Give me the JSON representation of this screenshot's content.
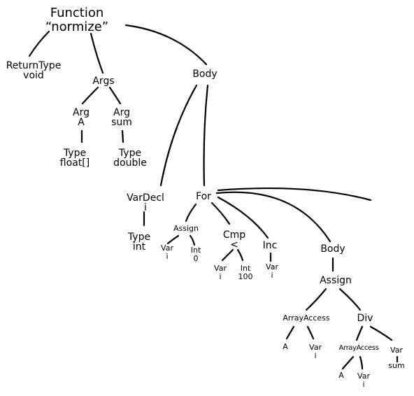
{
  "tree": {
    "function": [
      "Function",
      "“normize”"
    ],
    "return_type": [
      "ReturnType",
      "void"
    ],
    "args": [
      "Args"
    ],
    "arg_a": [
      "Arg",
      "A"
    ],
    "arg_sum": [
      "Arg",
      "sum"
    ],
    "type_float": [
      "Type",
      "float[]"
    ],
    "type_double": [
      "Type",
      "double"
    ],
    "body": [
      "Body"
    ],
    "vardecl": [
      "VarDecl",
      "i"
    ],
    "type_int": [
      "Type",
      "int"
    ],
    "for": [
      "For"
    ],
    "assign_init": [
      "Assign"
    ],
    "var_i_init": [
      "Var",
      "i"
    ],
    "int_0": [
      "Int",
      "0"
    ],
    "cmp": [
      "Cmp",
      "<"
    ],
    "var_i_cmp": [
      "Var",
      "i"
    ],
    "int_100": [
      "Int",
      "100"
    ],
    "inc": [
      "Inc"
    ],
    "var_i_inc": [
      "Var",
      "i"
    ],
    "for_body": [
      "Body"
    ],
    "assign_body": [
      "Assign"
    ],
    "array_access": [
      "ArrayAccess"
    ],
    "a_lhs": [
      "A"
    ],
    "var_i_lhs": [
      "Var",
      "i"
    ],
    "div": [
      "Div"
    ],
    "array_access_rhs": [
      "ArrayAccess"
    ],
    "a_rhs": [
      "A"
    ],
    "var_i_rhs": [
      "Var",
      "i"
    ],
    "var_sum": [
      "Var",
      "sum"
    ]
  }
}
